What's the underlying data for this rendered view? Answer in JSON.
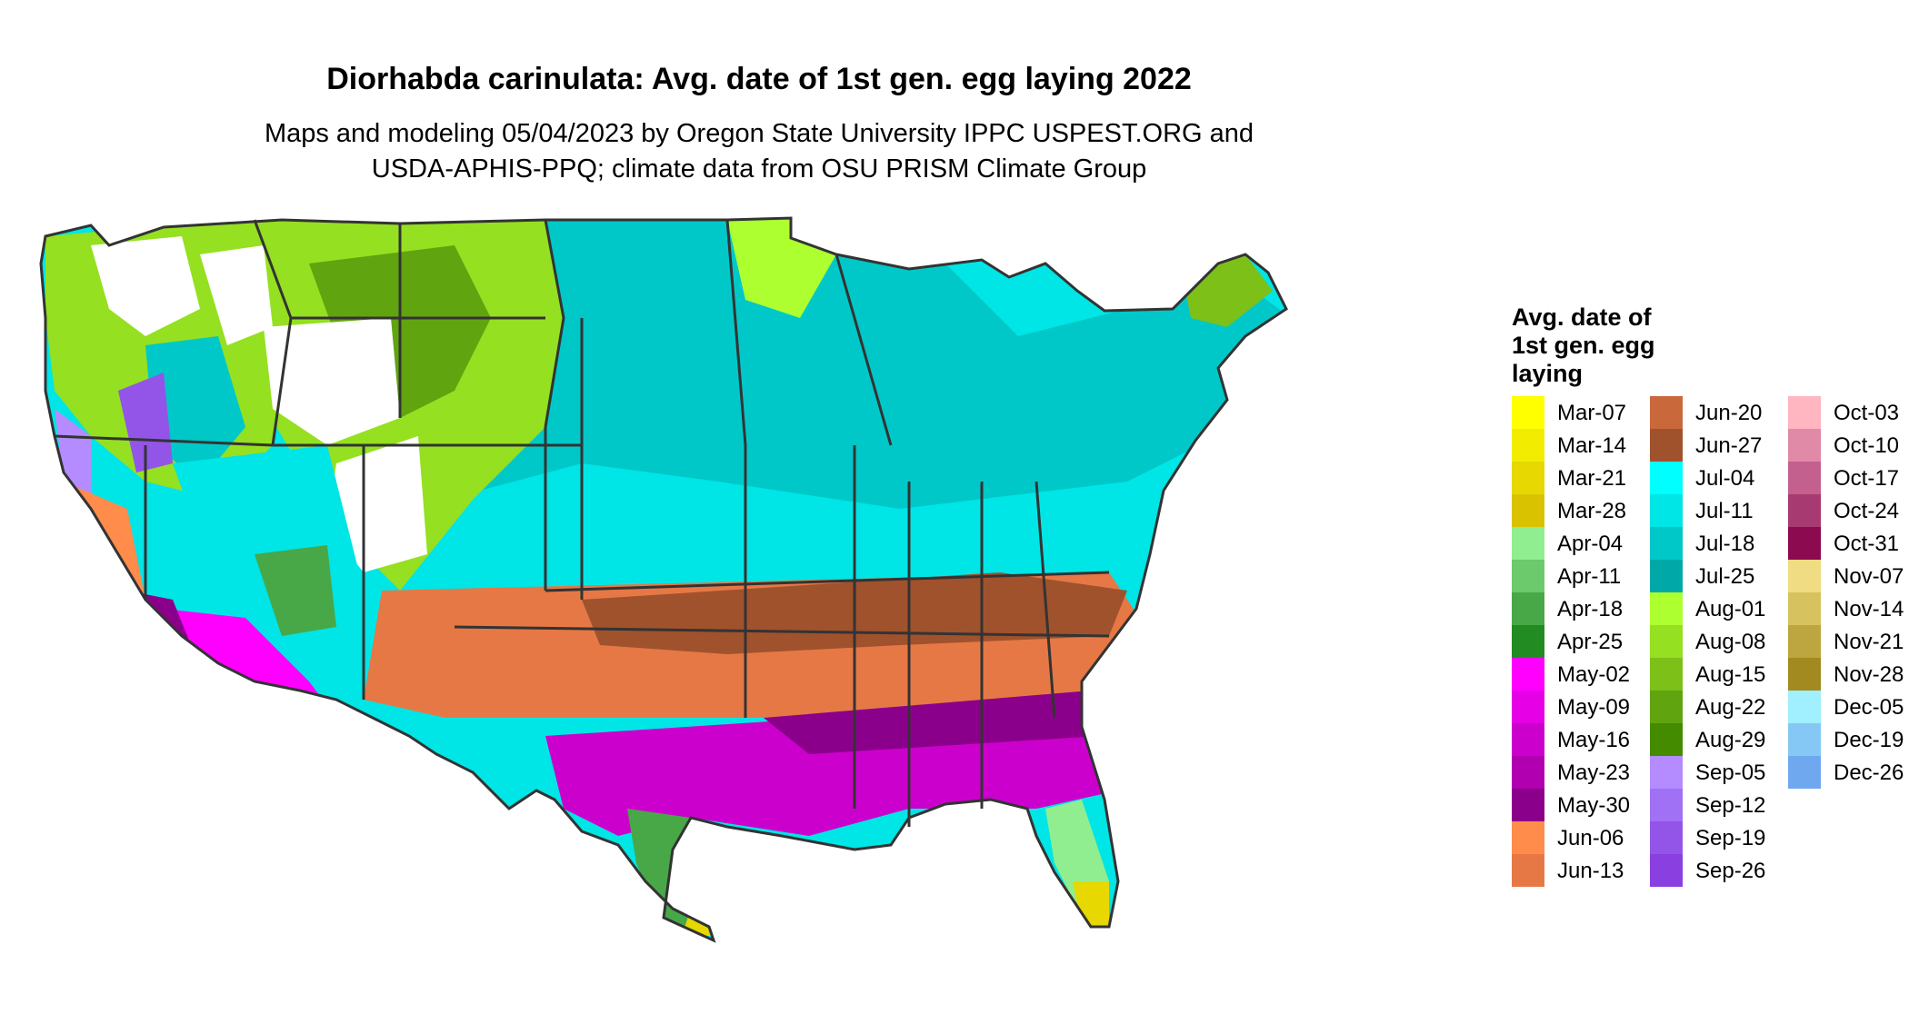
{
  "header": {
    "title": "Diorhabda carinulata: Avg. date of 1st gen. egg laying 2022",
    "subtitle_line1": "Maps and modeling 05/04/2023 by Oregon State University IPPC USPEST.ORG and",
    "subtitle_line2": "USDA-APHIS-PPQ; climate data from OSU PRISM Climate Group"
  },
  "legend": {
    "title_line1": "Avg. date of",
    "title_line2": "1st gen. egg",
    "title_line3": "laying",
    "entries": [
      {
        "label": "Mar-07",
        "color": "#ffff00"
      },
      {
        "label": "Mar-14",
        "color": "#f2ec00"
      },
      {
        "label": "Mar-21",
        "color": "#e6d800"
      },
      {
        "label": "Mar-28",
        "color": "#d9c300"
      },
      {
        "label": "Apr-04",
        "color": "#90ee90"
      },
      {
        "label": "Apr-11",
        "color": "#6cc96c"
      },
      {
        "label": "Apr-18",
        "color": "#48a848"
      },
      {
        "label": "Apr-25",
        "color": "#228b22"
      },
      {
        "label": "May-02",
        "color": "#ff00ff"
      },
      {
        "label": "May-09",
        "color": "#e600e6"
      },
      {
        "label": "May-16",
        "color": "#cc00cc"
      },
      {
        "label": "May-23",
        "color": "#b000b0"
      },
      {
        "label": "May-30",
        "color": "#8b008b"
      },
      {
        "label": "Jun-06",
        "color": "#ff8c4a"
      },
      {
        "label": "Jun-13",
        "color": "#e67845"
      },
      {
        "label": "Jun-20",
        "color": "#c9683a"
      },
      {
        "label": "Jun-27",
        "color": "#a0522d"
      },
      {
        "label": "Jul-04",
        "color": "#00ffff"
      },
      {
        "label": "Jul-11",
        "color": "#00e5e5"
      },
      {
        "label": "Jul-18",
        "color": "#00c8c8"
      },
      {
        "label": "Jul-25",
        "color": "#00a8a8"
      },
      {
        "label": "Aug-01",
        "color": "#adff2f"
      },
      {
        "label": "Aug-08",
        "color": "#95e020"
      },
      {
        "label": "Aug-15",
        "color": "#7cc018"
      },
      {
        "label": "Aug-22",
        "color": "#60a410"
      },
      {
        "label": "Aug-29",
        "color": "#458b00"
      },
      {
        "label": "Sep-05",
        "color": "#b48cff"
      },
      {
        "label": "Sep-12",
        "color": "#a070f5"
      },
      {
        "label": "Sep-19",
        "color": "#9255e8"
      },
      {
        "label": "Sep-26",
        "color": "#8a3fe0"
      },
      {
        "label": "Oct-03",
        "color": "#ffb6c1"
      },
      {
        "label": "Oct-10",
        "color": "#e08aa8"
      },
      {
        "label": "Oct-17",
        "color": "#c4608e"
      },
      {
        "label": "Oct-24",
        "color": "#a83a72"
      },
      {
        "label": "Oct-31",
        "color": "#8b0a50"
      },
      {
        "label": "Nov-07",
        "color": "#f0dc82"
      },
      {
        "label": "Nov-14",
        "color": "#d6c25e"
      },
      {
        "label": "Nov-21",
        "color": "#bda63f"
      },
      {
        "label": "Nov-28",
        "color": "#a38a20"
      },
      {
        "label": "Dec-05",
        "color": "#a0f0ff"
      },
      {
        "label": "Dec-19",
        "color": "#85c8f5"
      },
      {
        "label": "Dec-26",
        "color": "#70a8f0"
      }
    ]
  },
  "map": {
    "background_color": "#ffffff",
    "border_color": "#333333",
    "unmodeled_color": "#ffffff"
  }
}
